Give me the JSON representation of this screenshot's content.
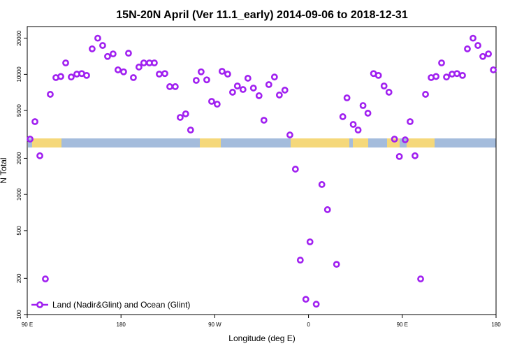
{
  "chart_data": {
    "type": "scatter",
    "title": "15N-20N April (Ver 11.1_early)   2014-09-06 to 2018-12-31",
    "xlabel": "Longitude (deg E)",
    "ylabel": "N Total",
    "xlim": [
      90,
      540
    ],
    "ylim": [
      100,
      25000
    ],
    "log_y": true,
    "legend": "bottom-left",
    "xticks": [
      {
        "value": 90,
        "label": "90 E"
      },
      {
        "value": 180,
        "label": "180"
      },
      {
        "value": 270,
        "label": "90 W"
      },
      {
        "value": 360,
        "label": "0"
      },
      {
        "value": 450,
        "label": "90 E"
      },
      {
        "value": 540,
        "label": "180"
      }
    ],
    "yticks": [
      100,
      200,
      500,
      1000,
      2000,
      5000,
      10000,
      20000
    ],
    "series": [
      {
        "name": "Land (Nadir&Glint) and Ocean (Glint)",
        "color": "#a020f0",
        "x": [
          92.7,
          97.4,
          102.1,
          107.4,
          112.1,
          117.5,
          122.2,
          126.9,
          132.2,
          137.6,
          142.3,
          147.0,
          152.3,
          157.7,
          162.4,
          167.1,
          172.4,
          177.1,
          182.5,
          187.2,
          191.9,
          197.2,
          201.9,
          207.3,
          212.0,
          216.7,
          222.1,
          226.8,
          232.1,
          236.8,
          242.1,
          246.8,
          252.2,
          256.9,
          262.3,
          267.0,
          272.3,
          277.0,
          282.4,
          287.1,
          291.7,
          297.1,
          301.8,
          307.1,
          312.5,
          317.2,
          321.9,
          327.3,
          332.0,
          337.3,
          342.1,
          347.4,
          352.1,
          357.4,
          361.4,
          367.4,
          372.8,
          378.2,
          386.9,
          392.9,
          396.9,
          402.9,
          407.6,
          412.3,
          417.0,
          422.4,
          427.1,
          432.5,
          437.2,
          442.5,
          447.2,
          452.8,
          457.5,
          462.2,
          467.6,
          472.3,
          477.7,
          482.4,
          487.7,
          492.4,
          497.8,
          502.5,
          507.8,
          512.5,
          517.9,
          522.6,
          527.3,
          532.7,
          537.4
        ],
        "values": [
          2890,
          4040,
          2100,
          198,
          6820,
          9400,
          9600,
          12450,
          9500,
          10050,
          10150,
          9800,
          16300,
          20000,
          17400,
          14100,
          14800,
          10900,
          10500,
          15000,
          9400,
          11500,
          12450,
          12450,
          12450,
          10050,
          10150,
          7900,
          7900,
          4380,
          4690,
          3440,
          8910,
          10500,
          9000,
          5960,
          5650,
          10600,
          10050,
          7100,
          8000,
          7480,
          9280,
          7690,
          6640,
          4150,
          8220,
          9500,
          6730,
          7390,
          3130,
          1625,
          284,
          134,
          403,
          122,
          1210,
          747,
          262,
          4440,
          6370,
          3830,
          3440,
          5500,
          4750,
          10150,
          9800,
          8000,
          7100,
          2890,
          2070,
          2850,
          4040,
          2100,
          198,
          6820,
          9400,
          9600,
          12450,
          9500,
          10050,
          10150,
          9800,
          16300,
          20000,
          17400,
          14100,
          14800,
          10900
        ]
      }
    ]
  }
}
